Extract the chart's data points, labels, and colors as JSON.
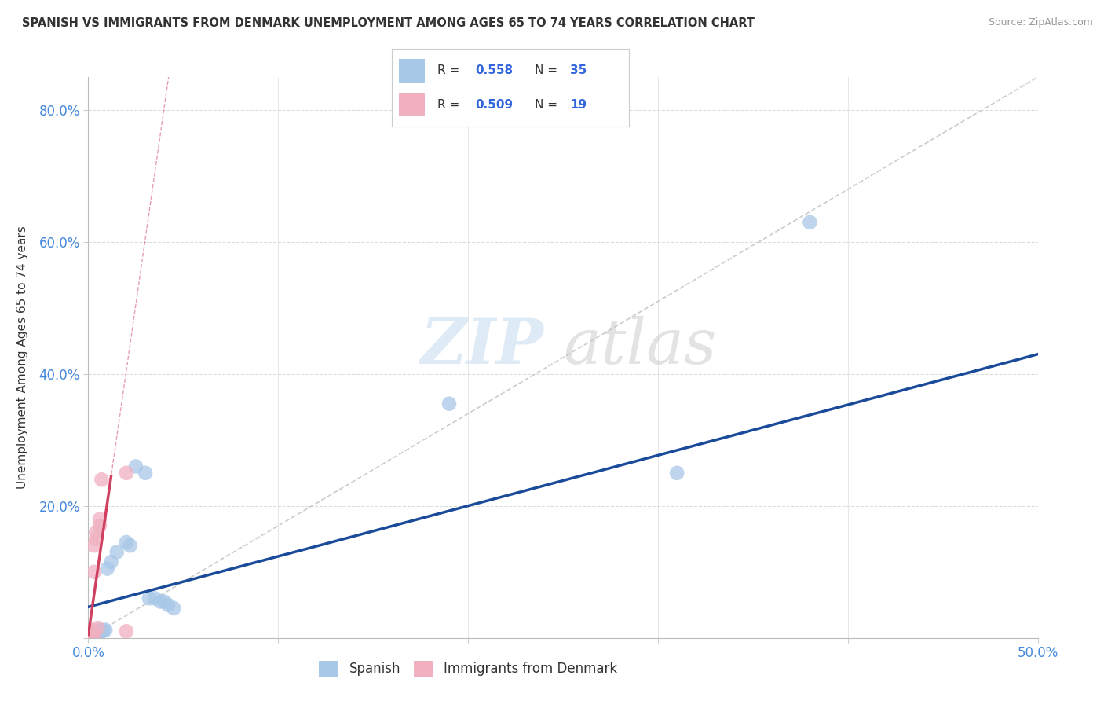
{
  "title": "SPANISH VS IMMIGRANTS FROM DENMARK UNEMPLOYMENT AMONG AGES 65 TO 74 YEARS CORRELATION CHART",
  "source": "Source: ZipAtlas.com",
  "xlabel": "",
  "ylabel": "Unemployment Among Ages 65 to 74 years",
  "xlim": [
    0.0,
    0.5
  ],
  "ylim": [
    0.0,
    0.85
  ],
  "xticks": [
    0.0,
    0.1,
    0.2,
    0.3,
    0.4,
    0.5
  ],
  "xtick_labels": [
    "0.0%",
    "",
    "",
    "",
    "",
    "50.0%"
  ],
  "yticks": [
    0.0,
    0.2,
    0.4,
    0.6,
    0.8
  ],
  "ytick_labels": [
    "",
    "20.0%",
    "40.0%",
    "60.0%",
    "80.0%"
  ],
  "legend_labels": [
    "Spanish",
    "Immigrants from Denmark"
  ],
  "r_spanish": 0.558,
  "n_spanish": 35,
  "r_denmark": 0.509,
  "n_denmark": 19,
  "spanish_color": "#a8c8e8",
  "denmark_color": "#f0b0c0",
  "trendline_spanish_color": "#1a4a9a",
  "trendline_denmark_color": "#d04060",
  "diagonal_color": "#cccccc",
  "spanish_x": [
    0.001,
    0.001,
    0.001,
    0.002,
    0.002,
    0.002,
    0.002,
    0.003,
    0.003,
    0.003,
    0.004,
    0.004,
    0.005,
    0.005,
    0.006,
    0.006,
    0.007,
    0.008,
    0.009,
    0.01,
    0.012,
    0.015,
    0.02,
    0.022,
    0.025,
    0.03,
    0.032,
    0.035,
    0.038,
    0.04,
    0.042,
    0.045,
    0.19,
    0.31,
    0.38
  ],
  "spanish_y": [
    0.002,
    0.003,
    0.004,
    0.002,
    0.005,
    0.006,
    0.003,
    0.004,
    0.007,
    0.008,
    0.005,
    0.009,
    0.006,
    0.01,
    0.008,
    0.012,
    0.01,
    0.011,
    0.012,
    0.105,
    0.115,
    0.13,
    0.145,
    0.14,
    0.26,
    0.25,
    0.06,
    0.06,
    0.055,
    0.055,
    0.05,
    0.045,
    0.355,
    0.25,
    0.63
  ],
  "denmark_x": [
    0.001,
    0.001,
    0.001,
    0.001,
    0.002,
    0.002,
    0.002,
    0.002,
    0.003,
    0.003,
    0.003,
    0.004,
    0.004,
    0.005,
    0.006,
    0.006,
    0.007,
    0.02,
    0.02
  ],
  "denmark_y": [
    0.002,
    0.004,
    0.006,
    0.01,
    0.003,
    0.005,
    0.008,
    0.012,
    0.006,
    0.1,
    0.14,
    0.15,
    0.16,
    0.015,
    0.17,
    0.18,
    0.24,
    0.01,
    0.25
  ],
  "watermark_zip": "ZIP",
  "watermark_atlas": "atlas",
  "background_color": "#ffffff",
  "grid_color": "#dddddd"
}
